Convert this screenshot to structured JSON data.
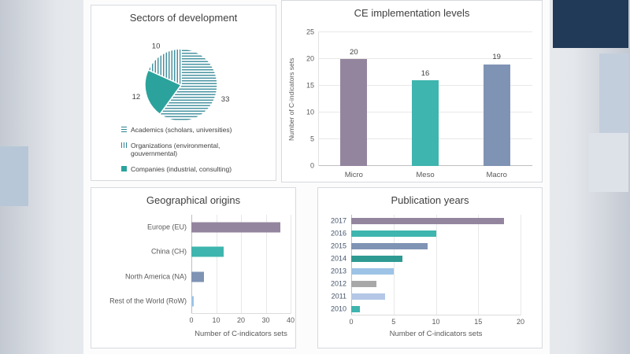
{
  "chart_data": [
    {
      "id": "sectors",
      "type": "pie",
      "title": "Sectors of development",
      "slices": [
        {
          "label": "Academics (scholars, universities)",
          "value": 33,
          "pattern": "h-lines"
        },
        {
          "label": "Companies (industrial, consulting)",
          "value": 12,
          "pattern": "solid"
        },
        {
          "label": "Organizations (environmental, gouvernmental)",
          "value": 10,
          "pattern": "v-lines"
        }
      ],
      "legend_order": [
        0,
        2,
        1
      ],
      "start_angle_deg": 0,
      "direction": "clockwise",
      "pattern_color": "#2e8494",
      "solid_color": "#2ba39c",
      "legend_position": "bottom-left",
      "data_labels": true
    },
    {
      "id": "ce-levels",
      "type": "bar",
      "title": "CE implementation levels",
      "categories": [
        "Micro",
        "Meso",
        "Macro"
      ],
      "values": [
        20,
        16,
        19
      ],
      "colors": [
        "#94859f",
        "#3eb5ae",
        "#7f93b4"
      ],
      "ylabel": "Number of C-indicators sets",
      "ylim": [
        0,
        25
      ],
      "yticks": [
        0,
        5,
        10,
        15,
        20,
        25
      ],
      "data_labels": true,
      "grid": true,
      "legend": "none"
    },
    {
      "id": "geo",
      "type": "barh",
      "title": "Geographical origins",
      "categories": [
        "Europe (EU)",
        "China (CH)",
        "North America (NA)",
        "Rest of the World (RoW)"
      ],
      "values": [
        36,
        13,
        5,
        1
      ],
      "colors": [
        "#94859f",
        "#3eb5ae",
        "#7f93b4",
        "#9dc3e6"
      ],
      "xlabel": "Number of C-indicators sets",
      "xlim": [
        0,
        40
      ],
      "xticks": [
        0,
        10,
        20,
        30,
        40
      ],
      "grid": true,
      "legend": "none"
    },
    {
      "id": "years",
      "type": "barh",
      "title": "Publication years",
      "categories": [
        "2017",
        "2016",
        "2015",
        "2014",
        "2013",
        "2012",
        "2011",
        "2010"
      ],
      "values": [
        18,
        10,
        9,
        6,
        5,
        3,
        4,
        1
      ],
      "colors": [
        "#94859f",
        "#3eb5ae",
        "#7f93b4",
        "#2f9a91",
        "#9dc3e6",
        "#a8a8a8",
        "#b4c7e7",
        "#3eb5ae"
      ],
      "xlabel": "Number of C-indicators sets",
      "xlim": [
        0,
        20
      ],
      "xticks": [
        0,
        5,
        10,
        15,
        20
      ],
      "grid": true,
      "legend": "none"
    }
  ],
  "decor": {
    "navy_block_color": "#203a58",
    "right_blue_block_color": "#c3cedd",
    "left_blue_block_color": "#b7c7d7",
    "card_background": "#ffffff",
    "card_border": "#d7dade",
    "title_text_color": "#3f3f3f",
    "axis_text_color": "#595959"
  }
}
